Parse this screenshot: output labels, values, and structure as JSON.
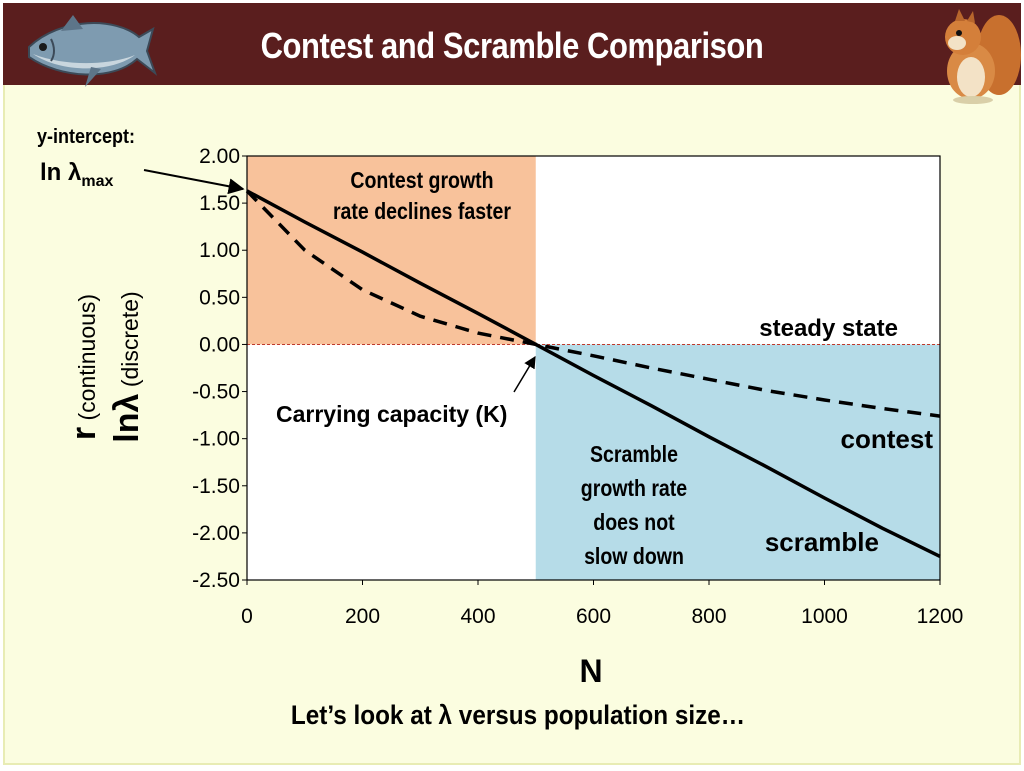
{
  "slide": {
    "title": "Contest and Scramble Comparison",
    "footer": "Let’s look at λ versus population size…",
    "colors": {
      "header": "#5a1e1e",
      "background": "#fbfde0",
      "contest_region": "#f8c29b",
      "scramble_region": "#b6dce8"
    },
    "icons": [
      "fish-icon",
      "squirrel-icon"
    ]
  },
  "chart_data": {
    "type": "line",
    "x": [
      0,
      100,
      200,
      300,
      400,
      500,
      600,
      700,
      800,
      900,
      1000,
      1100,
      1200
    ],
    "series": [
      {
        "name": "scramble",
        "style": "solid",
        "values": [
          1.63,
          1.3,
          0.98,
          0.65,
          0.33,
          0.0,
          -0.33,
          -0.65,
          -0.98,
          -1.3,
          -1.63,
          -1.95,
          -2.25
        ]
      },
      {
        "name": "contest",
        "style": "dashed",
        "values": [
          1.63,
          1.0,
          0.58,
          0.3,
          0.12,
          0.0,
          -0.12,
          -0.25,
          -0.37,
          -0.49,
          -0.59,
          -0.68,
          -0.76
        ]
      }
    ],
    "xlabel": "N",
    "ylabel_parts": {
      "r": "r",
      "r_note": "(continuous)",
      "ln": "lnλ",
      "ln_note": "(discrete)"
    },
    "xticks": [
      "0",
      "200",
      "400",
      "600",
      "800",
      "1000",
      "1200"
    ],
    "yticks": [
      "2.00",
      "1.50",
      "1.00",
      "0.50",
      "0.00",
      "-0.50",
      "-1.00",
      "-1.50",
      "-2.00",
      "-2.50"
    ],
    "xlim": [
      0,
      1200
    ],
    "ylim": [
      -2.5,
      2.0
    ],
    "grid": false,
    "steady_state_y": 0,
    "annotations": {
      "y_intercept_head": "y-intercept:",
      "y_intercept_ln": "ln λ",
      "y_intercept_sub": "max",
      "contest_region_line1": "Contest growth",
      "contest_region_line2": "rate declines faster",
      "steady_state": "steady state",
      "carrying_capacity": "Carrying capacity (K)",
      "scramble_region_line1": "Scramble",
      "scramble_region_line2": "growth rate",
      "scramble_region_line3": "does not",
      "scramble_region_line4": "slow down",
      "contest_label": "contest",
      "scramble_label": "scramble"
    }
  }
}
